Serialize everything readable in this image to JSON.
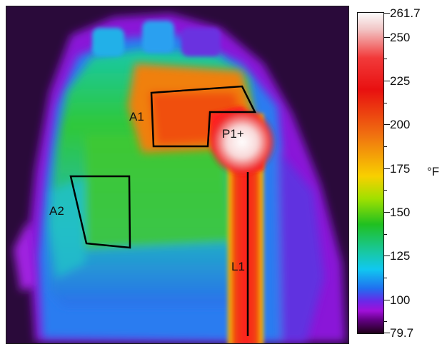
{
  "image": {
    "regions": {
      "a1_label": "A1",
      "a2_label": "A2",
      "p1_label": "P1+",
      "l1_label": "L1"
    }
  },
  "scale": {
    "max_label": "261.7",
    "min_label": "79.7",
    "unit": "°F",
    "ticks": [
      "250",
      "225",
      "200",
      "175",
      "150",
      "125",
      "100"
    ],
    "colors": {
      "hot": "#fbfbfb",
      "red": "#e81010",
      "orange": "#f07010",
      "yellow": "#f8d000",
      "green": "#20c020",
      "cyan": "#10c8f0",
      "blue": "#2070f0",
      "violet": "#a010d8",
      "cold": "#20001a"
    }
  }
}
